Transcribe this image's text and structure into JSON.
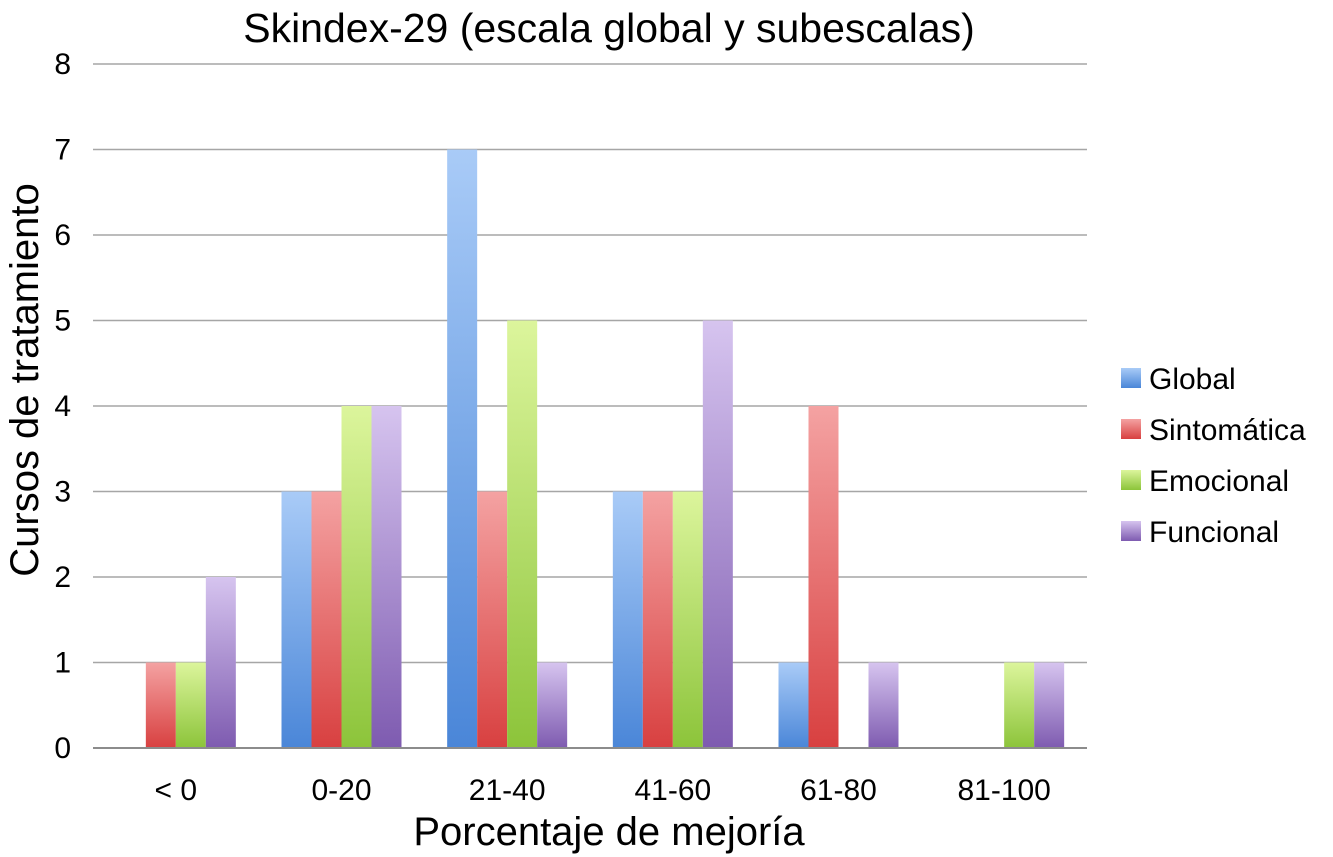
{
  "chart_data": {
    "type": "bar",
    "title": "Skindex-29 (escala global y subescalas)",
    "xlabel": "Porcentaje de mejoría",
    "ylabel": "Cursos de tratamiento",
    "categories": [
      "< 0",
      "0-20",
      "21-40",
      "41-60",
      "61-80",
      "81-100"
    ],
    "ylim": [
      0,
      8
    ],
    "yticks": [
      0,
      1,
      2,
      3,
      4,
      5,
      6,
      7,
      8
    ],
    "grid": true,
    "legend_position": "right",
    "series": [
      {
        "name": "Global",
        "values": [
          0,
          3,
          7,
          3,
          1,
          0
        ],
        "color": "#4a86d8",
        "light": "#a9cbf7"
      },
      {
        "name": "Sintomática",
        "values": [
          1,
          3,
          3,
          3,
          4,
          0
        ],
        "color": "#d84040",
        "light": "#f4a2a2"
      },
      {
        "name": "Emocional",
        "values": [
          1,
          4,
          5,
          3,
          0,
          1
        ],
        "color": "#8cc43a",
        "light": "#dcf59c"
      },
      {
        "name": "Funcional",
        "values": [
          2,
          4,
          1,
          5,
          1,
          1
        ],
        "color": "#7e5bb0",
        "light": "#d6c4ef"
      }
    ]
  }
}
